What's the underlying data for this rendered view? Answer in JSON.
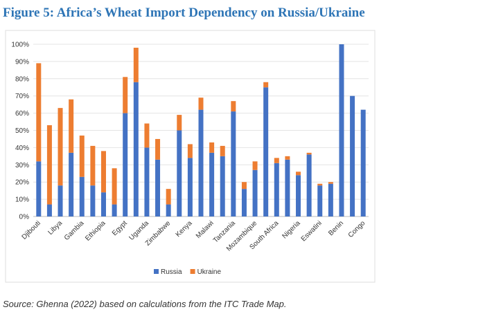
{
  "chart_data": {
    "type": "stacked_bar",
    "title": "Figure 5: Africa’s Wheat Import Dependency on Russia/Ukraine",
    "source": "Source: Ghenna (2022) based on calculations from the ITC Trade Map.",
    "categories": [
      "Djibouti",
      null,
      "Libya",
      null,
      "Gambia",
      null,
      "Ethiopia",
      null,
      "Egypt",
      null,
      "Uganda",
      null,
      "Zimbabwe",
      null,
      "Kenya",
      null,
      "Malawi",
      null,
      "Tanzania",
      null,
      "Mozambique",
      null,
      "South Africa",
      null,
      "Nigeria",
      null,
      "Eswatini",
      null,
      "Benin",
      null,
      "Congo"
    ],
    "series": [
      {
        "name": "Russia",
        "color": "#4472c4",
        "values": [
          32,
          7,
          18,
          37,
          23,
          18,
          14,
          7,
          60,
          78,
          40,
          33,
          7,
          50,
          34,
          62,
          37,
          35,
          61,
          16,
          27,
          75,
          31,
          33,
          24,
          36,
          18,
          19,
          100,
          70,
          62
        ]
      },
      {
        "name": "Ukraine",
        "color": "#ed7d31",
        "values": [
          57,
          46,
          45,
          31,
          24,
          23,
          24,
          21,
          21,
          20,
          14,
          12,
          9,
          9,
          8,
          7,
          6,
          6,
          6,
          4,
          5,
          3,
          3,
          2,
          2,
          1,
          1,
          1,
          0,
          0,
          0
        ]
      }
    ],
    "ylim": [
      0,
      100
    ],
    "yticks": [
      {
        "value": 0,
        "label": "0%"
      },
      {
        "value": 10,
        "label": "10%"
      },
      {
        "value": 20,
        "label": "20%"
      },
      {
        "value": 30,
        "label": "30%"
      },
      {
        "value": 40,
        "label": "40%"
      },
      {
        "value": 50,
        "label": "50%"
      },
      {
        "value": 60,
        "label": "60%"
      },
      {
        "value": 70,
        "label": "70%"
      },
      {
        "value": 80,
        "label": "80%"
      },
      {
        "value": 90,
        "label": "90%"
      },
      {
        "value": 100,
        "label": "100%"
      }
    ],
    "grid": true,
    "legend": "bottom"
  }
}
